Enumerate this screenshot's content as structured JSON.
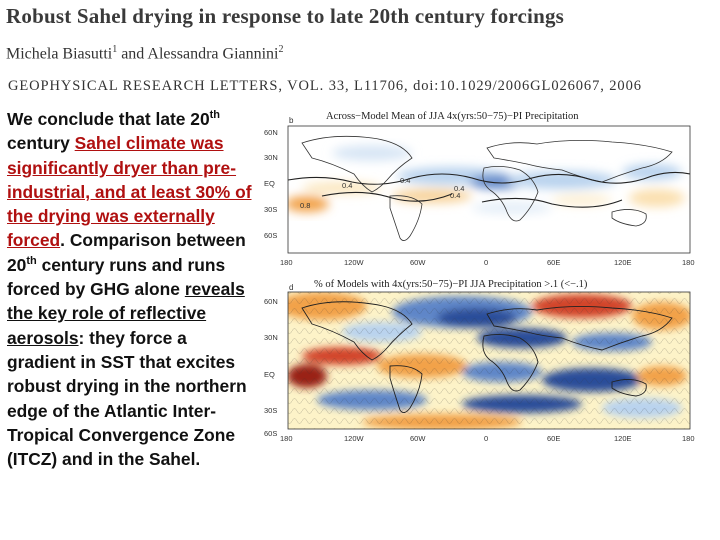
{
  "header": {
    "title": "Robust Sahel drying in response to late 20th century forcings",
    "author_1": "Michela Biasutti",
    "author_1_sup": "1",
    "author_join": " and ",
    "author_2": "Alessandra Giannini",
    "author_2_sup": "2",
    "journal": "GEOPHYSICAL RESEARCH LETTERS, VOL. 33, L11706, doi:10.1029/2006GL026067, 2006"
  },
  "summary": {
    "t1": "We conclude that late 20",
    "sup1": "th",
    "t2": " century ",
    "h1": "Sahel climate was significantly dryer than pre-industrial, and at least 30% of the drying was externally forced",
    "t3": ". Comparison between 20",
    "sup2": "th",
    "t4": " century runs and runs forced by GHG alone ",
    "u1": "reveals the key role of reflective aerosols",
    "t5": ": they force a gradient in SST that excites robust drying in the northern edge of the Atlantic Inter-Tropical Convergence Zone (ITCZ) and in the Sahel."
  },
  "figure": {
    "panel_b": {
      "letter": "b",
      "title": "Across−Model Mean of JJA 4x(yrs:50−75)−PI Precipitation",
      "contour_labels": [
        "0.4",
        "0.4",
        "0.4",
        "0.4",
        "0.8"
      ]
    },
    "panel_d": {
      "letter": "d",
      "title": "% of Models with 4x(yrs:50−75)−PI JJA Precipitation >.1 (<−.1)"
    },
    "lat_ticks": [
      "60N",
      "30N",
      "EQ",
      "30S",
      "60S"
    ],
    "lon_ticks": [
      "180",
      "120W",
      "60W",
      "0",
      "60E",
      "120E",
      "180"
    ],
    "colors": {
      "deep_blue": "#2b4e9a",
      "mid_blue": "#5e86c8",
      "light_blue": "#b9d3ee",
      "cream": "#fdf3c8",
      "orange": "#f2a24a",
      "red": "#d2442a",
      "dark_red": "#9a2418"
    }
  }
}
